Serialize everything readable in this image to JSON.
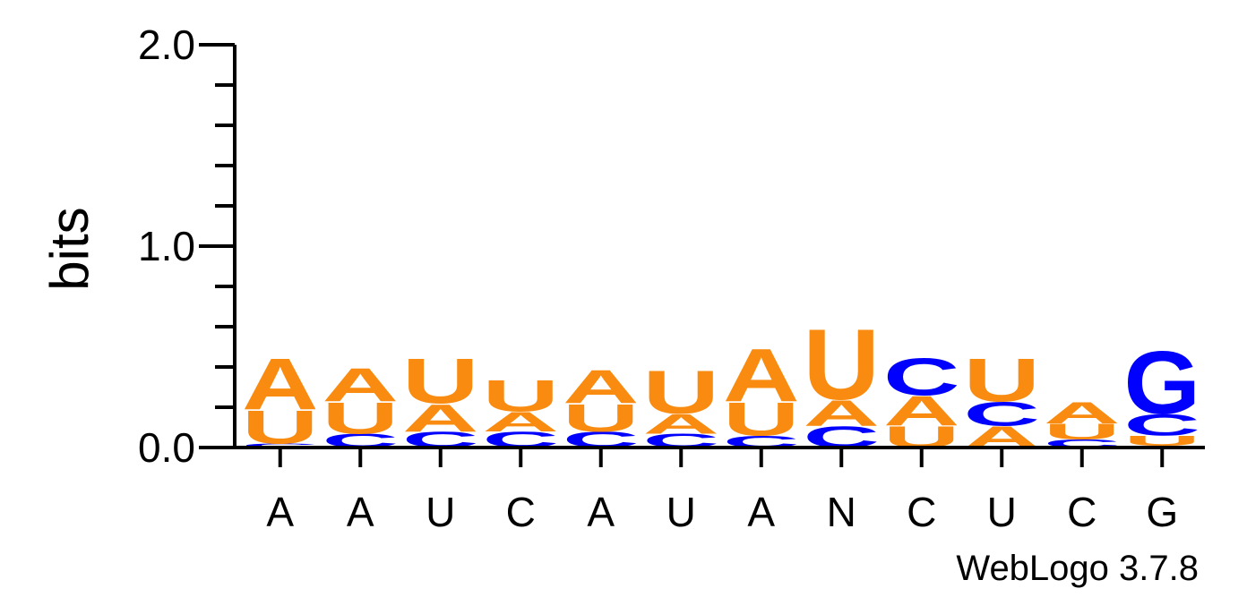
{
  "chart_data": {
    "type": "sequence-logo",
    "ylabel": "bits",
    "ylim": [
      0,
      2.0
    ],
    "y_major_ticks": [
      "0.0",
      "1.0",
      "2.0"
    ],
    "y_minor_step": 0.2,
    "positions": [
      {
        "label": "A",
        "stack": [
          {
            "letter": "C",
            "bits": 0.02
          },
          {
            "letter": "U",
            "bits": 0.17
          },
          {
            "letter": "A",
            "bits": 0.26
          }
        ]
      },
      {
        "label": "A",
        "stack": [
          {
            "letter": "C",
            "bits": 0.07
          },
          {
            "letter": "U",
            "bits": 0.16
          },
          {
            "letter": "A",
            "bits": 0.17
          }
        ]
      },
      {
        "label": "U",
        "stack": [
          {
            "letter": "C",
            "bits": 0.08
          },
          {
            "letter": "A",
            "bits": 0.14
          },
          {
            "letter": "U",
            "bits": 0.23
          }
        ]
      },
      {
        "label": "C",
        "stack": [
          {
            "letter": "C",
            "bits": 0.08
          },
          {
            "letter": "A",
            "bits": 0.1
          },
          {
            "letter": "U",
            "bits": 0.16
          }
        ]
      },
      {
        "label": "A",
        "stack": [
          {
            "letter": "C",
            "bits": 0.08
          },
          {
            "letter": "U",
            "bits": 0.14
          },
          {
            "letter": "A",
            "bits": 0.17
          }
        ]
      },
      {
        "label": "U",
        "stack": [
          {
            "letter": "C",
            "bits": 0.07
          },
          {
            "letter": "A",
            "bits": 0.1
          },
          {
            "letter": "U",
            "bits": 0.22
          }
        ]
      },
      {
        "label": "A",
        "stack": [
          {
            "letter": "C",
            "bits": 0.06
          },
          {
            "letter": "U",
            "bits": 0.17
          },
          {
            "letter": "A",
            "bits": 0.27
          }
        ]
      },
      {
        "label": "N",
        "stack": [
          {
            "letter": "C",
            "bits": 0.11
          },
          {
            "letter": "A",
            "bits": 0.13
          },
          {
            "letter": "U",
            "bits": 0.36
          }
        ]
      },
      {
        "label": "C",
        "stack": [
          {
            "letter": "U",
            "bits": 0.11
          },
          {
            "letter": "A",
            "bits": 0.15
          },
          {
            "letter": "C",
            "bits": 0.19
          }
        ]
      },
      {
        "label": "U",
        "stack": [
          {
            "letter": "A",
            "bits": 0.11
          },
          {
            "letter": "C",
            "bits": 0.12
          },
          {
            "letter": "U",
            "bits": 0.22
          }
        ]
      },
      {
        "label": "C",
        "stack": [
          {
            "letter": "C",
            "bits": 0.04
          },
          {
            "letter": "U",
            "bits": 0.08
          },
          {
            "letter": "A",
            "bits": 0.11
          }
        ]
      },
      {
        "label": "G",
        "stack": [
          {
            "letter": "A",
            "bits": 0.01
          },
          {
            "letter": "U",
            "bits": 0.05
          },
          {
            "letter": "C",
            "bits": 0.11
          },
          {
            "letter": "G",
            "bits": 0.32
          }
        ]
      }
    ],
    "colors": {
      "A": "#f98b10",
      "U": "#f98b10",
      "C": "#0000ff",
      "G": "#0000ff",
      "N": "#000000"
    },
    "credit": "WebLogo 3.7.8"
  }
}
